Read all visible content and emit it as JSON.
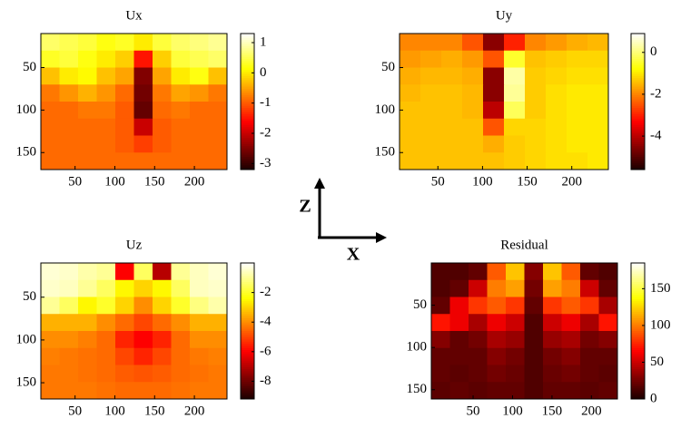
{
  "chart_data": [
    {
      "type": "heatmap",
      "title": "Ux",
      "colormap": "hot",
      "xlim": [
        7,
        241
      ],
      "ylim": [
        10,
        170
      ],
      "xticks": [
        50,
        100,
        150,
        200
      ],
      "yticks": [
        50,
        100,
        150
      ],
      "clim": [
        -3.2,
        1.3
      ],
      "cticks": [
        1,
        0,
        -1,
        -2,
        -3
      ],
      "values": [
        [
          0.6,
          0.5,
          0.4,
          0.2,
          0.3,
          0.0,
          0.4,
          0.6,
          0.7,
          0.8
        ],
        [
          0.3,
          0.4,
          0.2,
          0.0,
          -0.2,
          -1.5,
          -0.2,
          0.4,
          0.5,
          0.6
        ],
        [
          -0.3,
          0.0,
          0.1,
          -0.3,
          -0.5,
          -2.5,
          -0.5,
          0.0,
          0.2,
          -0.3
        ],
        [
          -0.8,
          -0.6,
          -0.4,
          -0.6,
          -0.9,
          -2.6,
          -0.8,
          -0.5,
          -0.6,
          -0.8
        ],
        [
          -0.9,
          -0.9,
          -0.8,
          -0.8,
          -1.0,
          -2.7,
          -0.9,
          -0.8,
          -0.9,
          -0.9
        ],
        [
          -0.9,
          -0.9,
          -0.9,
          -0.9,
          -1.0,
          -2.0,
          -1.0,
          -0.9,
          -0.9,
          -0.9
        ],
        [
          -0.9,
          -0.9,
          -0.9,
          -0.9,
          -1.0,
          -1.2,
          -1.0,
          -0.9,
          -0.9,
          -0.9
        ],
        [
          -0.9,
          -0.9,
          -0.9,
          -0.9,
          -0.9,
          -0.9,
          -0.9,
          -0.9,
          -0.9,
          -0.9
        ]
      ]
    },
    {
      "type": "heatmap",
      "title": "Uy",
      "colormap": "hot",
      "xlim": [
        7,
        241
      ],
      "ylim": [
        10,
        170
      ],
      "xticks": [
        50,
        100,
        150,
        200
      ],
      "yticks": [
        50,
        100,
        150
      ],
      "clim": [
        -5.6,
        0.9
      ],
      "cticks": [
        0,
        -2,
        -4
      ],
      "values": [
        [
          -2,
          -2,
          -2,
          -2.5,
          -4.5,
          -3,
          -2,
          -1.8,
          -1.6,
          -1.5
        ],
        [
          -1.8,
          -1.7,
          -1.6,
          -1.8,
          -2.5,
          -0.5,
          -1.4,
          -1.3,
          -1.2,
          -1.2
        ],
        [
          -1.6,
          -1.5,
          -1.5,
          -1.6,
          -4.5,
          0.3,
          -1.3,
          -1.2,
          -1.1,
          -1.1
        ],
        [
          -1.5,
          -1.4,
          -1.4,
          -1.5,
          -4.5,
          0.2,
          -1.3,
          -1.1,
          -1.0,
          -1.0
        ],
        [
          -1.4,
          -1.4,
          -1.4,
          -1.5,
          -4.0,
          -0.2,
          -1.3,
          -1.1,
          -1.0,
          -1.0
        ],
        [
          -1.4,
          -1.4,
          -1.4,
          -1.4,
          -2.5,
          -1.2,
          -1.2,
          -1.1,
          -1.0,
          -1.0
        ],
        [
          -1.4,
          -1.4,
          -1.4,
          -1.4,
          -1.6,
          -1.3,
          -1.2,
          -1.1,
          -1.0,
          -1.0
        ],
        [
          -1.4,
          -1.4,
          -1.4,
          -1.4,
          -1.4,
          -1.3,
          -1.2,
          -1.1,
          -1.1,
          -1.0
        ]
      ]
    },
    {
      "type": "heatmap",
      "title": "Uz",
      "colormap": "hot",
      "xlim": [
        7,
        241
      ],
      "ylim": [
        10,
        169
      ],
      "xticks": [
        50,
        100,
        150,
        200
      ],
      "yticks": [
        50,
        100,
        150
      ],
      "clim": [
        -9.2,
        0
      ],
      "cticks": [
        -2,
        -4,
        -6,
        -8
      ],
      "values": [
        [
          -0.4,
          -0.5,
          -0.8,
          -1,
          -6,
          -1.5,
          -7,
          -1,
          -0.6,
          -0.4
        ],
        [
          -0.5,
          -0.6,
          -1,
          -1.5,
          -2.5,
          -3,
          -2.5,
          -1.5,
          -0.6,
          -0.5
        ],
        [
          -1,
          -1.5,
          -2.5,
          -2,
          -3,
          -4,
          -3,
          -2,
          -1.2,
          -0.8
        ],
        [
          -3.5,
          -3.5,
          -3.5,
          -4,
          -4.5,
          -5,
          -4.5,
          -4,
          -3.5,
          -3.5
        ],
        [
          -4,
          -4,
          -4.2,
          -4.5,
          -5.5,
          -6,
          -5.5,
          -4.5,
          -4,
          -4
        ],
        [
          -4.2,
          -4.3,
          -4.4,
          -4.5,
          -5,
          -5.5,
          -5,
          -4.5,
          -4.3,
          -4.2
        ],
        [
          -4.3,
          -4.3,
          -4.4,
          -4.5,
          -4.7,
          -4.8,
          -4.7,
          -4.5,
          -4.4,
          -4.3
        ],
        [
          -4.3,
          -4.3,
          -4.3,
          -4.4,
          -4.5,
          -4.5,
          -4.5,
          -4.4,
          -4.3,
          -4.3
        ]
      ]
    },
    {
      "type": "heatmap",
      "title": "Residual",
      "colormap": "hot",
      "xlim": [
        -3,
        233
      ],
      "ylim": [
        0,
        161
      ],
      "xticks": [
        50,
        100,
        150,
        200
      ],
      "yticks": [
        50,
        100,
        150
      ],
      "clim": [
        0,
        185
      ],
      "cticks": [
        150,
        100,
        50,
        0
      ],
      "values": [
        [
          15,
          15,
          20,
          90,
          120,
          30,
          120,
          90,
          20,
          15
        ],
        [
          15,
          20,
          50,
          100,
          110,
          25,
          110,
          100,
          50,
          20
        ],
        [
          20,
          60,
          80,
          90,
          80,
          20,
          80,
          90,
          80,
          40
        ],
        [
          70,
          60,
          40,
          60,
          50,
          15,
          50,
          60,
          40,
          70
        ],
        [
          30,
          20,
          25,
          40,
          35,
          15,
          35,
          40,
          25,
          30
        ],
        [
          20,
          20,
          20,
          30,
          25,
          15,
          25,
          30,
          20,
          20
        ],
        [
          20,
          18,
          20,
          25,
          22,
          15,
          22,
          25,
          20,
          18
        ],
        [
          18,
          20,
          18,
          20,
          20,
          15,
          20,
          20,
          18,
          20
        ]
      ]
    }
  ],
  "axes_indicator": {
    "vertical": "Z",
    "horizontal": "X"
  }
}
